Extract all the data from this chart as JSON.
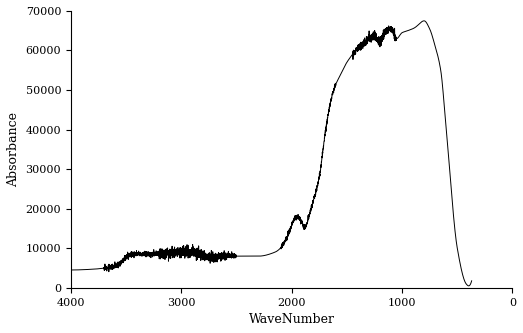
{
  "title": "",
  "xlabel": "WaveNumber",
  "ylabel": "Absorbance",
  "xlim": [
    4000,
    0
  ],
  "ylim": [
    0,
    70000
  ],
  "yticks": [
    0,
    10000,
    20000,
    30000,
    40000,
    50000,
    60000,
    70000
  ],
  "xticks": [
    4000,
    3000,
    2000,
    1000,
    0
  ],
  "line_color": "#000000",
  "bg_color": "#ffffff",
  "line_width": 0.7
}
